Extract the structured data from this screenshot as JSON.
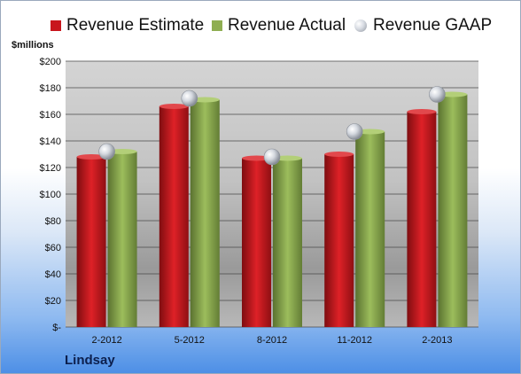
{
  "chart_data": {
    "type": "bar",
    "categories": [
      "2-2012",
      "5-2012",
      "8-2012",
      "11-2012",
      "2-2013"
    ],
    "series": [
      {
        "name": "Revenue Estimate",
        "values": [
          128,
          166,
          127,
          130,
          162
        ],
        "color": "#c8161d"
      },
      {
        "name": "Revenue Actual",
        "values": [
          132,
          171,
          127,
          147,
          175
        ],
        "color": "#8fae52"
      },
      {
        "name": "Revenue GAAP",
        "values": [
          132,
          172,
          128,
          147,
          175
        ],
        "color": "#c9ccd2"
      }
    ],
    "ylabel": "$millions",
    "ylim": [
      0,
      200
    ],
    "yticks": [
      "$-",
      "$20",
      "$40",
      "$60",
      "$80",
      "$100",
      "$120",
      "$140",
      "$160",
      "$180",
      "$200"
    ],
    "grid": true,
    "legend": "top",
    "footer": "Lindsay"
  }
}
